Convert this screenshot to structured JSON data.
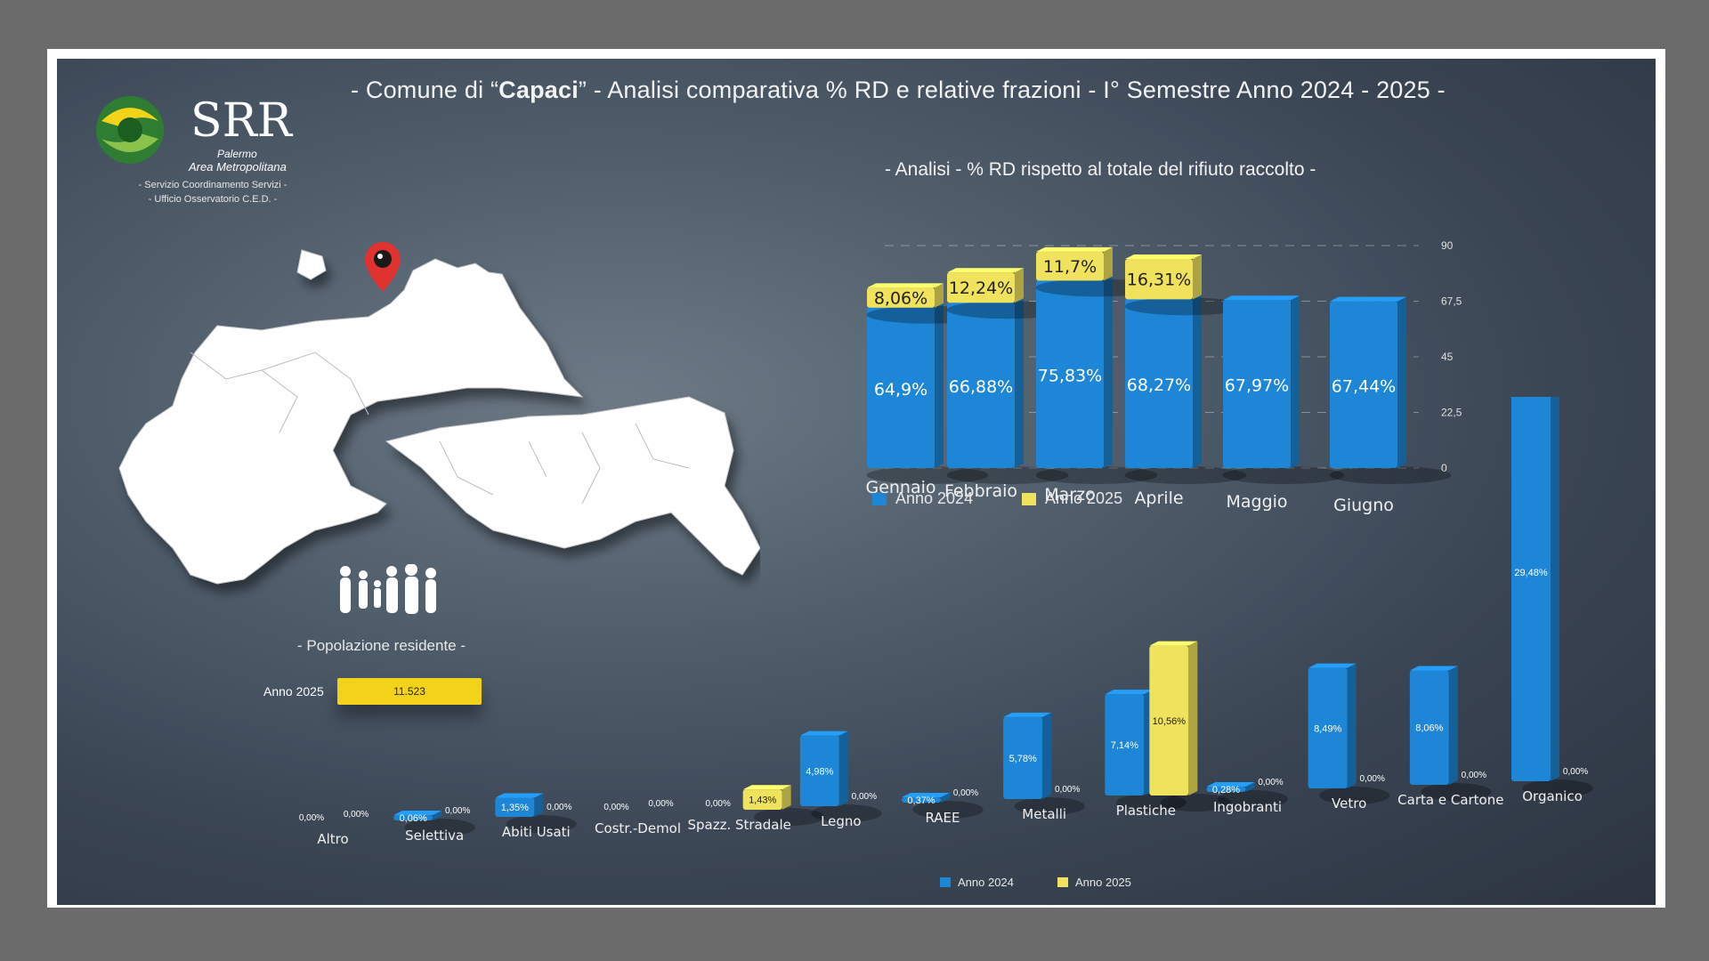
{
  "header": {
    "title_prefix": "- Comune di “",
    "title_bold": "Capaci",
    "title_suffix": "” - Analisi comparativa % RD e relative frazioni - I° Semestre Anno 2024 - 2025 -"
  },
  "logo": {
    "name": "SRR",
    "line1": "Palermo",
    "line2": "Area Metropolitana"
  },
  "office": {
    "line1": "- Servizio Coordinamento Servizi -",
    "line2": "- Ufficio Osservatorio C.E.D. -"
  },
  "population": {
    "label": "- Popolazione residente -",
    "year": "Anno 2025",
    "value": "11.523"
  },
  "colors": {
    "anno_2024": "#1e86d6",
    "anno_2025": "#f0e25c",
    "marker": "#e0322f"
  },
  "chart_data": [
    {
      "type": "bar",
      "title": "- Analisi - % RD rispetto al totale del rifiuto raccolto -",
      "categories": [
        "Gennaio",
        "Febbraio",
        "Marzo",
        "Aprile",
        "Maggio",
        "Giugno"
      ],
      "series": [
        {
          "name": "Anno 2024",
          "values": [
            64.9,
            66.88,
            75.83,
            68.27,
            67.97,
            67.44
          ],
          "labels": [
            "64,9%",
            "66,88%",
            "75,83%",
            "68,27%",
            "67,97%",
            "67,44%"
          ]
        },
        {
          "name": "Anno 2025",
          "values": [
            8.06,
            12.24,
            11.7,
            16.31,
            null,
            null
          ],
          "labels": [
            "8,06%",
            "12,24%",
            "11,7%",
            "16,31%",
            "",
            ""
          ]
        }
      ],
      "stacked": true,
      "ylim": [
        0,
        90
      ],
      "yticks": [
        "0",
        "22,5",
        "45",
        "67,5",
        "90"
      ],
      "legend": "bottom"
    },
    {
      "type": "bar",
      "categories": [
        "Altro",
        "Selettiva",
        "Abiti Usati",
        "Costr.-Demol",
        "Spazz. Stradale",
        "Legno",
        "RAEE",
        "Metalli",
        "Plastiche",
        "Ingobranti",
        "Vetro",
        "Carta e Cartone",
        "Organico"
      ],
      "series": [
        {
          "name": "Anno 2024",
          "values": [
            0,
            0.06,
            1.35,
            0,
            0,
            4.98,
            0.37,
            5.78,
            7.14,
            0.28,
            8.49,
            8.06,
            29.48
          ],
          "labels": [
            "0,00%",
            "0,06%",
            "1,35%",
            "0,00%",
            "0,00%",
            "4,98%",
            "0,37%",
            "5,78%",
            "7,14%",
            "0,28%",
            "8,49%",
            "8,06%",
            "29,48%"
          ]
        },
        {
          "name": "Anno 2025",
          "values": [
            0,
            0,
            0,
            0,
            1.43,
            0,
            0,
            0,
            10.56,
            0,
            0,
            0,
            0
          ],
          "labels": [
            "0,00%",
            "0,00%",
            "0,00%",
            "0,00%",
            "1,43%",
            "0,00%",
            "0,00%",
            "0,00%",
            "10,56%",
            "0,00%",
            "0,00%",
            "0,00%",
            "0,00%"
          ]
        }
      ],
      "legend": "bottom"
    }
  ]
}
